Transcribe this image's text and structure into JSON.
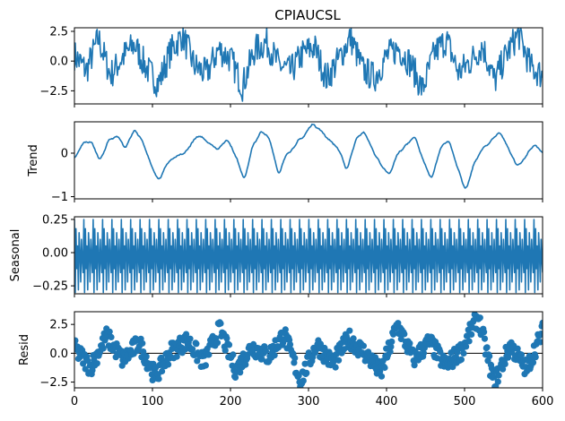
{
  "chart_data": {
    "type": "line",
    "title": "CPIAUCSL",
    "color": "#1f77b4",
    "x_range": [
      0,
      600
    ],
    "n_points": 600,
    "x_ticks": [
      0,
      100,
      200,
      300,
      400,
      500,
      600
    ],
    "x_tick_labels": [
      "0",
      "100",
      "200",
      "300",
      "400",
      "500",
      "600"
    ],
    "panels": [
      {
        "name": "observed",
        "ylabel": "",
        "kind": "line",
        "ylim": [
          -3.6,
          2.8
        ],
        "yticks": [
          -2.5,
          0.0,
          2.5
        ],
        "ytick_labels": [
          "−2.5",
          "0.0",
          "2.5"
        ],
        "baseline": null,
        "sample_values": [
          0.5,
          -0.8,
          1.9,
          -1.2,
          0.3,
          1.4,
          -0.6,
          -1.9,
          0.8,
          2.2,
          -0.4,
          -1.1,
          1.0,
          0.2,
          -2.1,
          0.9,
          1.6,
          -0.3,
          -0.9,
          0.6,
          1.2,
          -1.5,
          0.1,
          2.0,
          -0.7,
          -1.4,
          0.4,
          1.1,
          -0.2,
          -2.4,
          0.7,
          1.8,
          -1.0,
          0.0,
          1.3,
          -1.7,
          0.6,
          2.3,
          -0.5,
          -1.2
        ]
      },
      {
        "name": "trend",
        "ylabel": "Trend",
        "kind": "line",
        "ylim": [
          -1.05,
          0.72
        ],
        "yticks": [
          -1,
          0
        ],
        "ytick_labels": [
          "−1",
          "0"
        ],
        "baseline": null,
        "sample_values": [
          -0.1,
          0.2,
          0.3,
          -0.2,
          0.3,
          0.4,
          0.1,
          0.55,
          0.3,
          -0.3,
          -0.6,
          -0.2,
          -0.1,
          0.0,
          0.3,
          0.4,
          0.2,
          0.1,
          0.35,
          -0.1,
          -0.6,
          0.2,
          0.5,
          0.3,
          -0.5,
          0.0,
          0.2,
          0.4,
          0.7,
          0.5,
          0.3,
          0.1,
          -0.4,
          0.3,
          0.5,
          0.1,
          -0.3,
          -0.5,
          0.0,
          0.2,
          0.4,
          -0.2,
          -0.6,
          0.1,
          0.3,
          -0.3,
          -0.9,
          -0.2,
          0.1,
          0.3,
          0.5,
          0.1,
          -0.3,
          -0.1,
          0.2,
          0.0
        ]
      },
      {
        "name": "seasonal",
        "ylabel": "Seasonal",
        "kind": "seasonal",
        "ylim": [
          -0.31,
          0.27
        ],
        "yticks": [
          -0.25,
          0.0,
          0.25
        ],
        "ytick_labels": [
          "−0.25",
          "0.00",
          "0.25"
        ],
        "baseline": null,
        "period": 12,
        "pattern": [
          0.25,
          -0.3,
          0.18,
          -0.12,
          0.05,
          -0.28,
          0.15,
          0.0,
          -0.22,
          0.1,
          -0.05,
          -0.15
        ]
      },
      {
        "name": "resid",
        "ylabel": "Resid",
        "kind": "scatter",
        "ylim": [
          -3.0,
          3.6
        ],
        "yticks": [
          -2.5,
          0.0,
          2.5
        ],
        "ytick_labels": [
          "−2.5",
          "0.0",
          "2.5"
        ],
        "baseline": 0,
        "sample_values": [
          0.4,
          -1.2,
          1.5,
          -0.6,
          0.9,
          -2.0,
          0.2,
          1.1,
          -0.8,
          2.1,
          -1.5,
          0.6,
          -0.3,
          1.7,
          -2.4,
          0.8,
          -0.9,
          1.3,
          0.0,
          -1.7,
          2.5,
          -0.5,
          1.0,
          -1.1,
          0.3,
          3.2,
          -2.6,
          0.7,
          -1.4,
          1.9
        ]
      }
    ]
  }
}
